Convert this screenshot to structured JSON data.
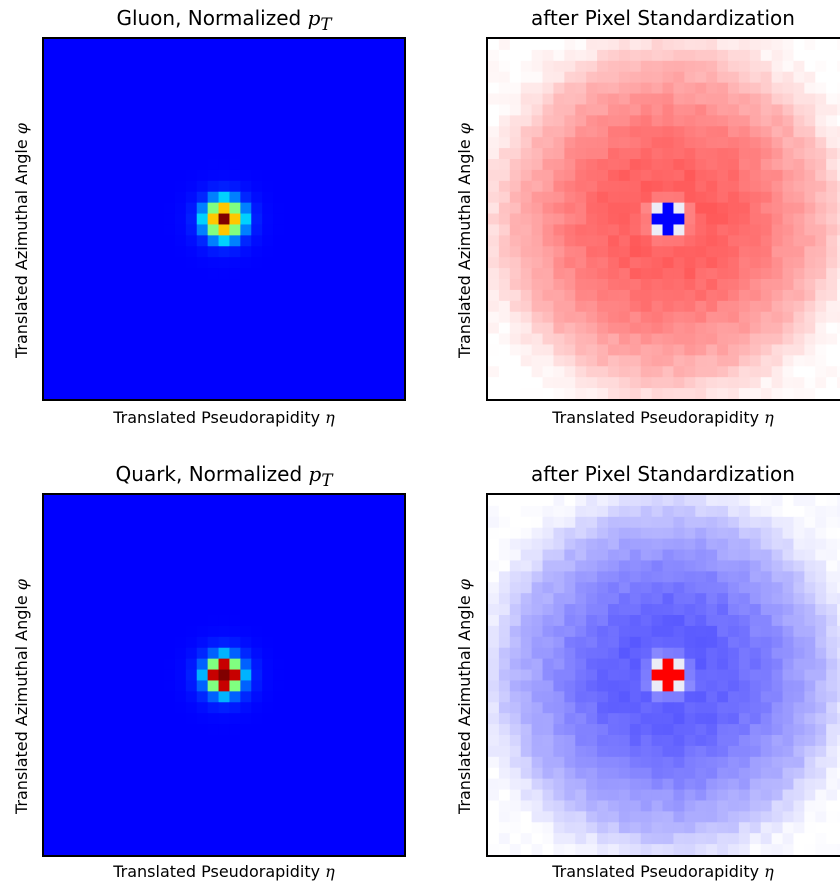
{
  "chart_data": [
    {
      "type": "heatmap",
      "title": "Gluon, Normalized",
      "title_math": "p",
      "title_math_sub": "T",
      "xlabel": "Translated Pseudorapidity",
      "xlabel_symbol": "η",
      "ylabel": "Translated Azimuthal Angle",
      "ylabel_symbol": "φ",
      "colormap": "jet",
      "grid_size": 33,
      "center": [
        16,
        16
      ],
      "peak_pattern": "gluon",
      "ticks": "none"
    },
    {
      "type": "heatmap",
      "title": "after Pixel Standardization",
      "xlabel": "Translated Pseudorapidity",
      "xlabel_symbol": "η",
      "ylabel": "Translated Azimuthal Angle",
      "ylabel_symbol": "φ",
      "colormap": "bwr",
      "halo_color": "red",
      "center_color": "blue",
      "grid_size": 33,
      "center": [
        16,
        16
      ],
      "ticks": "none"
    },
    {
      "type": "heatmap",
      "title": "Quark, Normalized",
      "title_math": "p",
      "title_math_sub": "T",
      "xlabel": "Translated Pseudorapidity",
      "xlabel_symbol": "η",
      "ylabel": "Translated Azimuthal Angle",
      "ylabel_symbol": "φ",
      "colormap": "jet",
      "grid_size": 33,
      "center": [
        16,
        16
      ],
      "peak_pattern": "quark",
      "ticks": "none"
    },
    {
      "type": "heatmap",
      "title": "after Pixel Standardization",
      "xlabel": "Translated Pseudorapidity",
      "xlabel_symbol": "η",
      "ylabel": "Translated Azimuthal Angle",
      "ylabel_symbol": "φ",
      "colormap": "bwr",
      "halo_color": "blue",
      "center_color": "red",
      "grid_size": 33,
      "center": [
        16,
        16
      ],
      "ticks": "none"
    }
  ]
}
